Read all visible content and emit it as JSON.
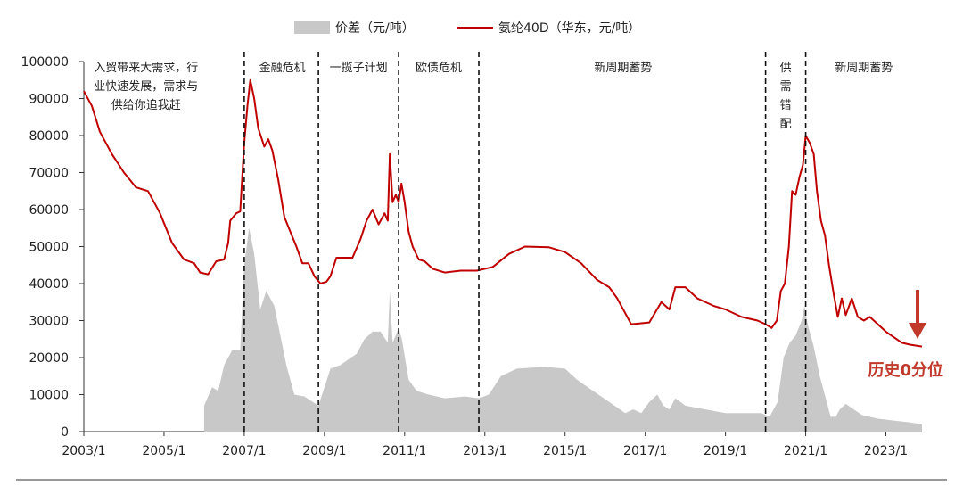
{
  "chart_data": {
    "type": "area+line",
    "legend": {
      "placement": "top-center",
      "items": [
        {
          "label": "价差（元/吨）",
          "kind": "area",
          "color": "#c8c8c8"
        },
        {
          "label": "氨纶40D（华东，元/吨）",
          "kind": "line",
          "color": "#c00000"
        }
      ]
    },
    "ylim": [
      0,
      100000
    ],
    "y_ticks": [
      "100000",
      "90000",
      "80000",
      "70000",
      "60000",
      "50000",
      "40000",
      "30000",
      "20000",
      "10000",
      "0"
    ],
    "x_range": [
      2003.0,
      2023.9
    ],
    "x_ticks": [
      {
        "label": "2003/1",
        "x": 2003.0
      },
      {
        "label": "2005/1",
        "x": 2005.0
      },
      {
        "label": "2007/1",
        "x": 2007.0
      },
      {
        "label": "2009/1",
        "x": 2009.0
      },
      {
        "label": "2011/1",
        "x": 2011.0
      },
      {
        "label": "2013/1",
        "x": 2013.0
      },
      {
        "label": "2015/1",
        "x": 2015.0
      },
      {
        "label": "2017/1",
        "x": 2017.0
      },
      {
        "label": "2019/1",
        "x": 2019.0
      },
      {
        "label": "2021/1",
        "x": 2021.0
      },
      {
        "label": "2023/1",
        "x": 2023.0
      }
    ],
    "dividers": [
      2007.0,
      2008.85,
      2010.85,
      2012.85,
      2020.0,
      2021.0
    ],
    "phases": [
      {
        "lines": [
          "入贸带来大需求，行",
          "业快速发展，需求与",
          "供给你追我赶"
        ],
        "x": 2004.55,
        "align": "middle"
      },
      {
        "lines": [
          "金融危机"
        ],
        "x": 2007.95,
        "align": "middle"
      },
      {
        "lines": [
          "一揽子计划"
        ],
        "x": 2009.85,
        "align": "middle"
      },
      {
        "lines": [
          "欧债危机"
        ],
        "x": 2011.85,
        "align": "middle"
      },
      {
        "lines": [
          "新周期蓄势"
        ],
        "x": 2016.45,
        "align": "middle"
      },
      {
        "lines": [
          "供",
          "需",
          "错",
          "配"
        ],
        "x": 2020.5,
        "align": "middle"
      },
      {
        "lines": [
          "新周期蓄势"
        ],
        "x": 2022.45,
        "align": "middle"
      }
    ],
    "annotation": {
      "text": "历史0分位",
      "color": "#c0392b"
    },
    "series_price": {
      "name": "氨纶40D（华东，元/吨）",
      "points": [
        [
          2003.0,
          92000
        ],
        [
          2003.2,
          88000
        ],
        [
          2003.4,
          81000
        ],
        [
          2003.7,
          75000
        ],
        [
          2004.0,
          70000
        ],
        [
          2004.3,
          66000
        ],
        [
          2004.6,
          65000
        ],
        [
          2004.9,
          59000
        ],
        [
          2005.2,
          51000
        ],
        [
          2005.5,
          46500
        ],
        [
          2005.75,
          45500
        ],
        [
          2005.9,
          43000
        ],
        [
          2006.1,
          42500
        ],
        [
          2006.3,
          46000
        ],
        [
          2006.5,
          46500
        ],
        [
          2006.6,
          51000
        ],
        [
          2006.65,
          57000
        ],
        [
          2006.8,
          59000
        ],
        [
          2006.9,
          59500
        ],
        [
          2007.0,
          78000
        ],
        [
          2007.08,
          88000
        ],
        [
          2007.15,
          95000
        ],
        [
          2007.25,
          90000
        ],
        [
          2007.35,
          82000
        ],
        [
          2007.5,
          77000
        ],
        [
          2007.6,
          79000
        ],
        [
          2007.7,
          76000
        ],
        [
          2007.85,
          68000
        ],
        [
          2008.0,
          58000
        ],
        [
          2008.15,
          54000
        ],
        [
          2008.3,
          50000
        ],
        [
          2008.45,
          45500
        ],
        [
          2008.6,
          45500
        ],
        [
          2008.75,
          42000
        ],
        [
          2008.9,
          40000
        ],
        [
          2009.05,
          40500
        ],
        [
          2009.15,
          42000
        ],
        [
          2009.3,
          47000
        ],
        [
          2009.7,
          47000
        ],
        [
          2009.9,
          52000
        ],
        [
          2010.05,
          57000
        ],
        [
          2010.2,
          60000
        ],
        [
          2010.35,
          56000
        ],
        [
          2010.5,
          59000
        ],
        [
          2010.58,
          57000
        ],
        [
          2010.63,
          75000
        ],
        [
          2010.7,
          62000
        ],
        [
          2010.78,
          64000
        ],
        [
          2010.85,
          62000
        ],
        [
          2010.92,
          67000
        ],
        [
          2011.0,
          62000
        ],
        [
          2011.1,
          54000
        ],
        [
          2011.2,
          50000
        ],
        [
          2011.35,
          46500
        ],
        [
          2011.5,
          46000
        ],
        [
          2011.7,
          44000
        ],
        [
          2012.0,
          43000
        ],
        [
          2012.4,
          43500
        ],
        [
          2012.8,
          43500
        ],
        [
          2013.2,
          44500
        ],
        [
          2013.6,
          48000
        ],
        [
          2014.0,
          50000
        ],
        [
          2014.6,
          49800
        ],
        [
          2015.0,
          48500
        ],
        [
          2015.4,
          45500
        ],
        [
          2015.8,
          41000
        ],
        [
          2016.1,
          39000
        ],
        [
          2016.3,
          36000
        ],
        [
          2016.5,
          32000
        ],
        [
          2016.65,
          29000
        ],
        [
          2017.1,
          29500
        ],
        [
          2017.4,
          35000
        ],
        [
          2017.6,
          33000
        ],
        [
          2017.75,
          39000
        ],
        [
          2018.0,
          39000
        ],
        [
          2018.3,
          36000
        ],
        [
          2018.7,
          34000
        ],
        [
          2019.0,
          33000
        ],
        [
          2019.4,
          31000
        ],
        [
          2019.8,
          30000
        ],
        [
          2020.0,
          29000
        ],
        [
          2020.15,
          28000
        ],
        [
          2020.28,
          30000
        ],
        [
          2020.38,
          38000
        ],
        [
          2020.48,
          40000
        ],
        [
          2020.58,
          50000
        ],
        [
          2020.66,
          65000
        ],
        [
          2020.75,
          64000
        ],
        [
          2020.85,
          69000
        ],
        [
          2020.93,
          72000
        ],
        [
          2021.0,
          80000
        ],
        [
          2021.1,
          78000
        ],
        [
          2021.2,
          75000
        ],
        [
          2021.28,
          65000
        ],
        [
          2021.38,
          57000
        ],
        [
          2021.48,
          53000
        ],
        [
          2021.58,
          45000
        ],
        [
          2021.7,
          37000
        ],
        [
          2021.8,
          31000
        ],
        [
          2021.9,
          36000
        ],
        [
          2022.0,
          31500
        ],
        [
          2022.15,
          36000
        ],
        [
          2022.3,
          31000
        ],
        [
          2022.45,
          30000
        ],
        [
          2022.6,
          31000
        ],
        [
          2022.8,
          29000
        ],
        [
          2023.0,
          27000
        ],
        [
          2023.2,
          25500
        ],
        [
          2023.4,
          24000
        ],
        [
          2023.6,
          23500
        ],
        [
          2023.9,
          23000
        ]
      ]
    },
    "series_spread": {
      "name": "价差（元/吨）",
      "points": [
        [
          2006.0,
          0
        ],
        [
          2006.0,
          7000
        ],
        [
          2006.2,
          12000
        ],
        [
          2006.35,
          11000
        ],
        [
          2006.5,
          18000
        ],
        [
          2006.7,
          22000
        ],
        [
          2006.9,
          22000
        ],
        [
          2007.0,
          45000
        ],
        [
          2007.12,
          55000
        ],
        [
          2007.25,
          48000
        ],
        [
          2007.4,
          33000
        ],
        [
          2007.55,
          38000
        ],
        [
          2007.75,
          34000
        ],
        [
          2007.9,
          26000
        ],
        [
          2008.05,
          18000
        ],
        [
          2008.25,
          10000
        ],
        [
          2008.5,
          9500
        ],
        [
          2008.85,
          7000
        ],
        [
          2009.0,
          12000
        ],
        [
          2009.15,
          17000
        ],
        [
          2009.4,
          18000
        ],
        [
          2009.8,
          21000
        ],
        [
          2010.0,
          25000
        ],
        [
          2010.2,
          27000
        ],
        [
          2010.4,
          27000
        ],
        [
          2010.58,
          24000
        ],
        [
          2010.63,
          38000
        ],
        [
          2010.7,
          24000
        ],
        [
          2010.85,
          28000
        ],
        [
          2010.93,
          25000
        ],
        [
          2011.1,
          14000
        ],
        [
          2011.3,
          11000
        ],
        [
          2011.6,
          10000
        ],
        [
          2012.0,
          9000
        ],
        [
          2012.5,
          9500
        ],
        [
          2012.85,
          9000
        ],
        [
          2013.1,
          10000
        ],
        [
          2013.4,
          15000
        ],
        [
          2013.8,
          17000
        ],
        [
          2014.5,
          17500
        ],
        [
          2015.0,
          17000
        ],
        [
          2015.3,
          14000
        ],
        [
          2015.7,
          11000
        ],
        [
          2016.1,
          8000
        ],
        [
          2016.5,
          5000
        ],
        [
          2016.7,
          6000
        ],
        [
          2016.9,
          5000
        ],
        [
          2017.1,
          8000
        ],
        [
          2017.3,
          10000
        ],
        [
          2017.45,
          7000
        ],
        [
          2017.6,
          6000
        ],
        [
          2017.75,
          9000
        ],
        [
          2018.0,
          7000
        ],
        [
          2018.5,
          6000
        ],
        [
          2019.0,
          5000
        ],
        [
          2019.5,
          5000
        ],
        [
          2019.9,
          5000
        ],
        [
          2020.1,
          4000
        ],
        [
          2020.3,
          8000
        ],
        [
          2020.45,
          20000
        ],
        [
          2020.6,
          24000
        ],
        [
          2020.75,
          26000
        ],
        [
          2020.9,
          30000
        ],
        [
          2020.97,
          34000
        ],
        [
          2021.05,
          29000
        ],
        [
          2021.2,
          23000
        ],
        [
          2021.35,
          15000
        ],
        [
          2021.5,
          9000
        ],
        [
          2021.62,
          4000
        ],
        [
          2021.75,
          4000
        ],
        [
          2021.85,
          6000
        ],
        [
          2022.0,
          7500
        ],
        [
          2022.2,
          6000
        ],
        [
          2022.4,
          4500
        ],
        [
          2022.8,
          3500
        ],
        [
          2023.2,
          3000
        ],
        [
          2023.6,
          2500
        ],
        [
          2023.9,
          2000
        ],
        [
          2023.9,
          0
        ]
      ]
    }
  }
}
